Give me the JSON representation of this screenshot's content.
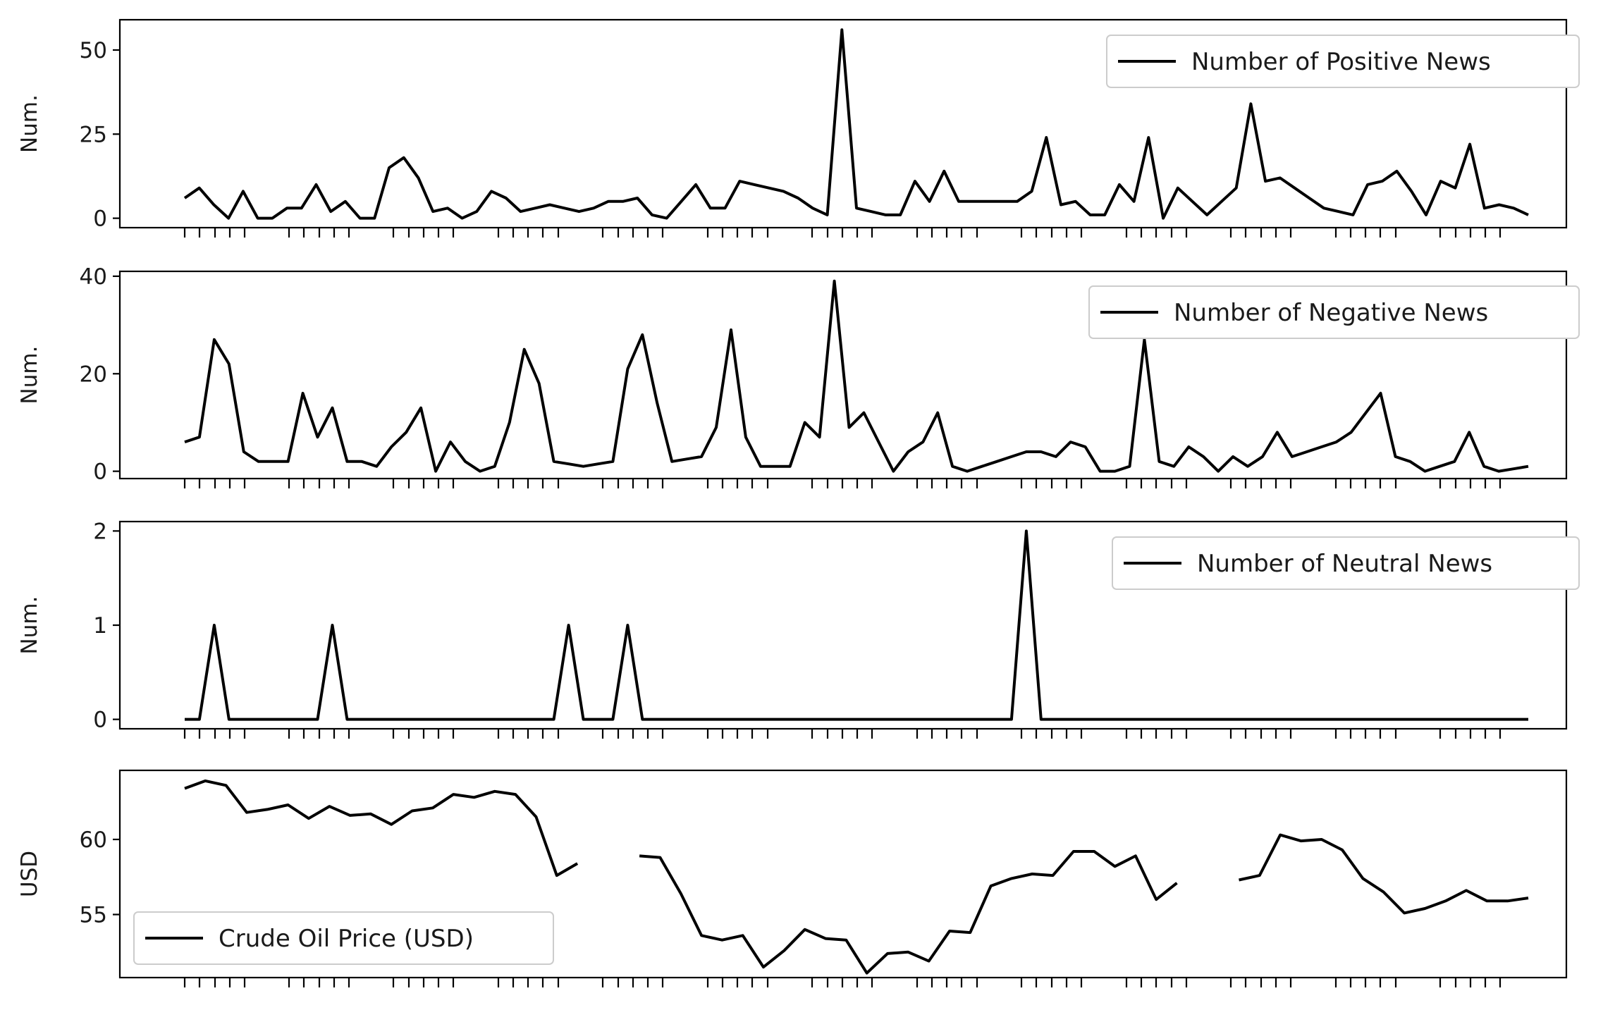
{
  "chart_data": [
    {
      "type": "line",
      "ylabel": "Num.",
      "yticks": [
        0,
        25,
        50
      ],
      "ylim": [
        -2.8,
        59
      ],
      "legend": {
        "label": "Number of Positive News",
        "placement": "upper right"
      },
      "series": [
        {
          "name": "Number of Positive News",
          "values": [
            6,
            9,
            4,
            0,
            8,
            0,
            0,
            3,
            3,
            10,
            2,
            5,
            0,
            0,
            15,
            18,
            12,
            2,
            3,
            0,
            2,
            8,
            6,
            2,
            3,
            4,
            3,
            2,
            3,
            5,
            5,
            6,
            1,
            0,
            5,
            10,
            3,
            3,
            11,
            10,
            9,
            8,
            6,
            3,
            1,
            56,
            3,
            2,
            1,
            1,
            11,
            5,
            14,
            5,
            5,
            5,
            5,
            5,
            8,
            24,
            4,
            5,
            1,
            1,
            10,
            5,
            24,
            0,
            9,
            5,
            1,
            5,
            9,
            34,
            11,
            12,
            9,
            6,
            3,
            2,
            1,
            10,
            11,
            14,
            8,
            1,
            11,
            9,
            22,
            3,
            4,
            3,
            1
          ]
        }
      ]
    },
    {
      "type": "line",
      "ylabel": "Num.",
      "yticks": [
        0,
        20,
        40
      ],
      "ylim": [
        -1.5,
        41
      ],
      "legend": {
        "label": "Number of Negative News",
        "placement": "upper right"
      },
      "series": [
        {
          "name": "Number of Negative News",
          "values": [
            6,
            7,
            27,
            22,
            4,
            2,
            2,
            2,
            16,
            7,
            13,
            2,
            2,
            1,
            5,
            8,
            13,
            0,
            6,
            2,
            0,
            1,
            10,
            25,
            18,
            2,
            1.5,
            1,
            1.5,
            2,
            21,
            28,
            14,
            2,
            2.5,
            3,
            9,
            29,
            7,
            1,
            1,
            1,
            10,
            7,
            39,
            9,
            12,
            6,
            0,
            4,
            6,
            12,
            1,
            0,
            1,
            2,
            3,
            4,
            4,
            3,
            6,
            5,
            0,
            0,
            1,
            27,
            2,
            1,
            5,
            3,
            0,
            3,
            1,
            3,
            8,
            3,
            4,
            5,
            6,
            8,
            12,
            16,
            3,
            2,
            0,
            1,
            2,
            8,
            1,
            0,
            0.5,
            1
          ]
        }
      ]
    },
    {
      "type": "line",
      "ylabel": "Num.",
      "yticks": [
        0,
        1,
        2
      ],
      "ylim": [
        -0.1,
        2.1
      ],
      "legend": {
        "label": "Number of Neutral News",
        "placement": "upper right"
      },
      "series": [
        {
          "name": "Number of Neutral News",
          "values": [
            0,
            0,
            1,
            0,
            0,
            0,
            0,
            0,
            0,
            0,
            1,
            0,
            0,
            0,
            0,
            0,
            0,
            0,
            0,
            0,
            0,
            0,
            0,
            0,
            0,
            0,
            1,
            0,
            0,
            0,
            1,
            0,
            0,
            0,
            0,
            0,
            0,
            0,
            0,
            0,
            0,
            0,
            0,
            0,
            0,
            0,
            0,
            0,
            0,
            0,
            0,
            0,
            0,
            0,
            0,
            0,
            0,
            2,
            0,
            0,
            0,
            0,
            0,
            0,
            0,
            0,
            0,
            0,
            0,
            0,
            0,
            0,
            0,
            0,
            0,
            0,
            0,
            0,
            0,
            0,
            0,
            0,
            0,
            0,
            0,
            0,
            0,
            0,
            0,
            0,
            0,
            0
          ]
        }
      ]
    },
    {
      "type": "line",
      "ylabel": "USD",
      "yticks": [
        55,
        60
      ],
      "ylim": [
        50.8,
        64.6
      ],
      "legend": {
        "label": "Crude Oil Price (USD)",
        "placement": "lower left"
      },
      "series": [
        {
          "name": "Crude Oil Price (USD)",
          "values": [
            63.4,
            63.9,
            63.6,
            61.8,
            62.0,
            62.3,
            61.4,
            62.2,
            61.6,
            61.7,
            61.0,
            61.9,
            62.1,
            63.0,
            62.8,
            63.2,
            63.0,
            61.5,
            57.6,
            58.4,
            null,
            null,
            58.9,
            58.8,
            56.4,
            53.6,
            53.3,
            53.6,
            51.5,
            52.6,
            54.0,
            53.4,
            53.3,
            51.1,
            52.4,
            52.5,
            51.9,
            53.9,
            53.8,
            56.9,
            57.4,
            57.7,
            57.6,
            59.2,
            59.2,
            58.2,
            58.9,
            56.0,
            57.1,
            null,
            null,
            57.3,
            57.6,
            60.3,
            59.9,
            60.0,
            59.3,
            57.4,
            56.5,
            55.1,
            55.4,
            55.9,
            56.6,
            55.9,
            55.9,
            56.1
          ]
        }
      ]
    }
  ]
}
